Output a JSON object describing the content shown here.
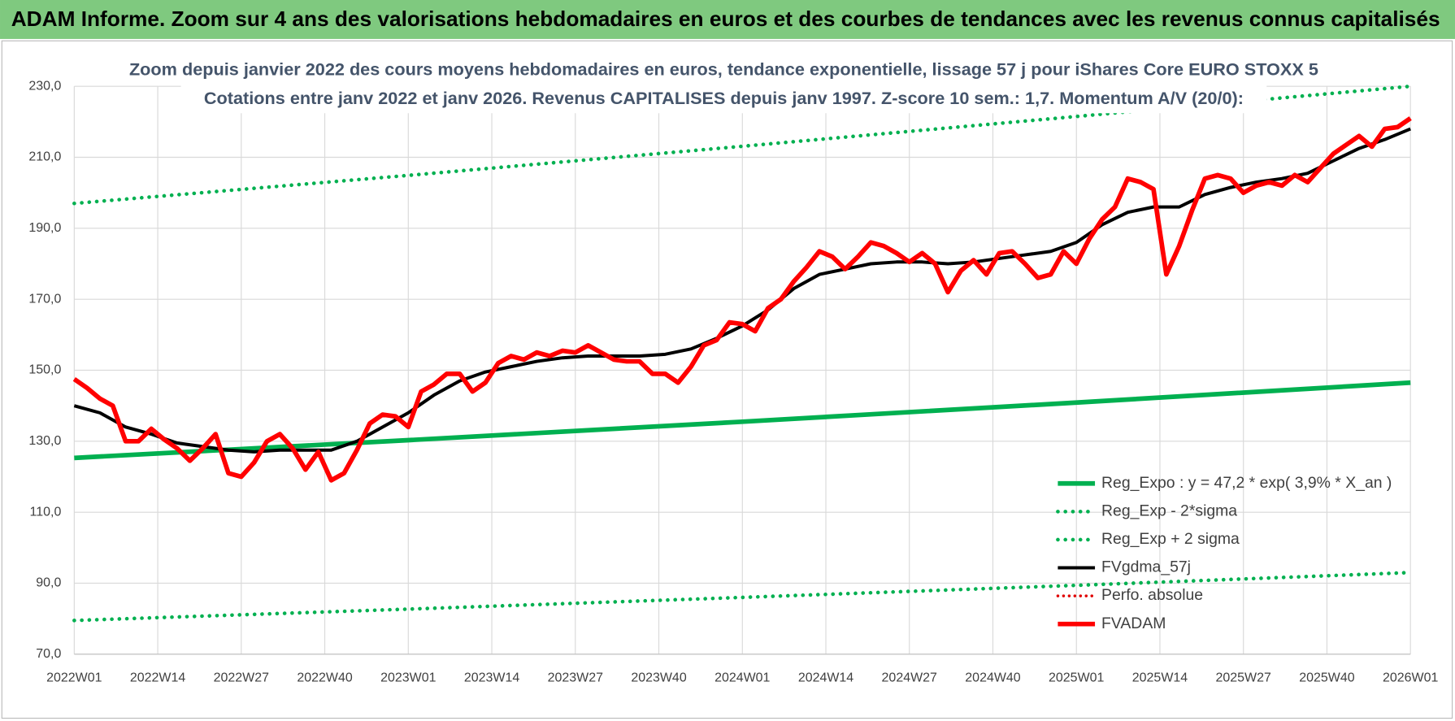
{
  "header": "ADAM Informe. Zoom sur 4 ans des valorisations hebdomadaires en euros et des courbes de tendances avec les revenus connus capitalisés",
  "chart_data": {
    "type": "line",
    "title": "Zoom depuis janvier 2022 des cours moyens hebdomadaires en euros, tendance exponentielle, lissage 57 j pour iShares Core EURO STOXX 5",
    "subtitle": "Cotations entre janv 2022 et janv 2026. Revenus CAPITALISES depuis janv 1997. Z-score 10 sem.: 1,7. Momentum A/V (20/0):",
    "xlim": [
      0,
      208
    ],
    "xticks": [
      {
        "value": 0,
        "label": "2022W01"
      },
      {
        "value": 13,
        "label": "2022W14"
      },
      {
        "value": 26,
        "label": "2022W27"
      },
      {
        "value": 39,
        "label": "2022W40"
      },
      {
        "value": 52,
        "label": "2023W01"
      },
      {
        "value": 65,
        "label": "2023W14"
      },
      {
        "value": 78,
        "label": "2023W27"
      },
      {
        "value": 91,
        "label": "2023W40"
      },
      {
        "value": 104,
        "label": "2024W01"
      },
      {
        "value": 117,
        "label": "2024W14"
      },
      {
        "value": 130,
        "label": "2024W27"
      },
      {
        "value": 143,
        "label": "2024W40"
      },
      {
        "value": 156,
        "label": "2025W01"
      },
      {
        "value": 169,
        "label": "2025W14"
      },
      {
        "value": 182,
        "label": "2025W27"
      },
      {
        "value": 195,
        "label": "2025W40"
      },
      {
        "value": 208,
        "label": "2026W01"
      }
    ],
    "ylim": [
      70,
      230
    ],
    "yticks": [
      {
        "value": 70,
        "label": "70,0"
      },
      {
        "value": 90,
        "label": "90,0"
      },
      {
        "value": 110,
        "label": "110,0"
      },
      {
        "value": 130,
        "label": "130,0"
      },
      {
        "value": 150,
        "label": "150,0"
      },
      {
        "value": 170,
        "label": "170,0"
      },
      {
        "value": 190,
        "label": "190,0"
      },
      {
        "value": 210,
        "label": "210,0"
      },
      {
        "value": 230,
        "label": "230,0"
      }
    ],
    "grid": true,
    "legend": "bottom-right",
    "series": [
      {
        "name": "Reg_Expo : y = 47,2 * exp( 3,9% *  X_an )",
        "color": "#00b050",
        "dash": "solid",
        "width": 5,
        "x": [
          0,
          52,
          104,
          156,
          208
        ],
        "values": [
          125.3,
          130.3,
          135.5,
          140.9,
          146.5
        ]
      },
      {
        "name": "Reg_Exp - 2*sigma",
        "color": "#00b050",
        "dash": "dotted",
        "width": 4,
        "x": [
          0,
          52,
          104,
          156,
          208
        ],
        "values": [
          79.5,
          82.7,
          86.0,
          89.4,
          93.0
        ]
      },
      {
        "name": "Reg_Exp + 2 sigma",
        "color": "#00b050",
        "dash": "dotted",
        "width": 4,
        "x": [
          0,
          52,
          104,
          156,
          208
        ],
        "values": [
          197,
          204.9,
          213.1,
          221.5,
          230
        ]
      },
      {
        "name": "FVgdma_57j",
        "color": "#000000",
        "dash": "solid",
        "width": 3.5,
        "x": [
          0,
          4,
          8,
          12,
          16,
          20,
          24,
          28,
          32,
          36,
          40,
          44,
          48,
          52,
          56,
          60,
          64,
          68,
          72,
          76,
          80,
          84,
          88,
          92,
          96,
          100,
          104,
          108,
          112,
          116,
          120,
          124,
          128,
          132,
          136,
          140,
          144,
          148,
          152,
          156,
          160,
          164,
          168,
          172,
          176,
          180,
          184,
          188,
          192,
          196,
          200,
          204,
          208
        ],
        "values": [
          140,
          138,
          134,
          132,
          129.5,
          128.5,
          127.5,
          127,
          127.5,
          127.5,
          127.5,
          130,
          134,
          138,
          143,
          147,
          149.5,
          151,
          152.5,
          153.5,
          154,
          154,
          154,
          154.5,
          156,
          159,
          162.5,
          167,
          173,
          177,
          178.5,
          180,
          180.5,
          180.5,
          180,
          180.5,
          181.5,
          182.5,
          183.5,
          186,
          191,
          194.5,
          196,
          196,
          199.5,
          201.5,
          203,
          204,
          205.5,
          209,
          212.5,
          215,
          218
        ]
      },
      {
        "name": "Perfo. absolue",
        "color": "#e00000",
        "dash": "dotted",
        "width": 3,
        "x": [],
        "values": []
      },
      {
        "name": "FVADAM",
        "color": "#ff0000",
        "dash": "solid",
        "width": 5,
        "x": [
          0,
          2,
          4,
          6,
          8,
          10,
          12,
          14,
          16,
          18,
          20,
          22,
          24,
          26,
          28,
          30,
          32,
          34,
          36,
          38,
          40,
          42,
          44,
          46,
          48,
          50,
          52,
          54,
          56,
          58,
          60,
          62,
          64,
          66,
          68,
          70,
          72,
          74,
          76,
          78,
          80,
          82,
          84,
          86,
          88,
          90,
          92,
          94,
          96,
          98,
          100,
          102,
          104,
          106,
          108,
          110,
          112,
          114,
          116,
          118,
          120,
          122,
          124,
          126,
          128,
          130,
          132,
          134,
          136,
          138,
          140,
          142,
          144,
          146,
          148,
          150,
          152,
          154,
          156,
          158,
          160,
          162,
          164,
          166,
          168,
          170,
          172,
          174,
          176,
          178,
          180,
          182,
          184,
          186,
          188,
          190,
          192,
          194,
          196,
          198,
          200,
          202,
          204,
          206,
          208
        ],
        "values": [
          147.5,
          145,
          142,
          140,
          130,
          130,
          133.5,
          130.5,
          128,
          124.5,
          128,
          132,
          121,
          120,
          124,
          130,
          132,
          128,
          122,
          127,
          119,
          121,
          127.5,
          135,
          137.5,
          137,
          134,
          144,
          146,
          149,
          149,
          144,
          146.5,
          152,
          154,
          153,
          155,
          154,
          155.5,
          155,
          157,
          155,
          153,
          152.5,
          152.5,
          149,
          149,
          146.5,
          151,
          157,
          158.5,
          163.5,
          163,
          161,
          167.5,
          170,
          175,
          179,
          183.5,
          182,
          178.5,
          182,
          186,
          185,
          183,
          180.5,
          183,
          180,
          172,
          178,
          181,
          177,
          183,
          183.5,
          180,
          176,
          177,
          183.5,
          180,
          187,
          192.5,
          196,
          204,
          203,
          201,
          177,
          185,
          195,
          204,
          205,
          204,
          200,
          202,
          203,
          202,
          205,
          203,
          207,
          211,
          213.5,
          216,
          213,
          218,
          218.5,
          221
        ]
      }
    ]
  }
}
